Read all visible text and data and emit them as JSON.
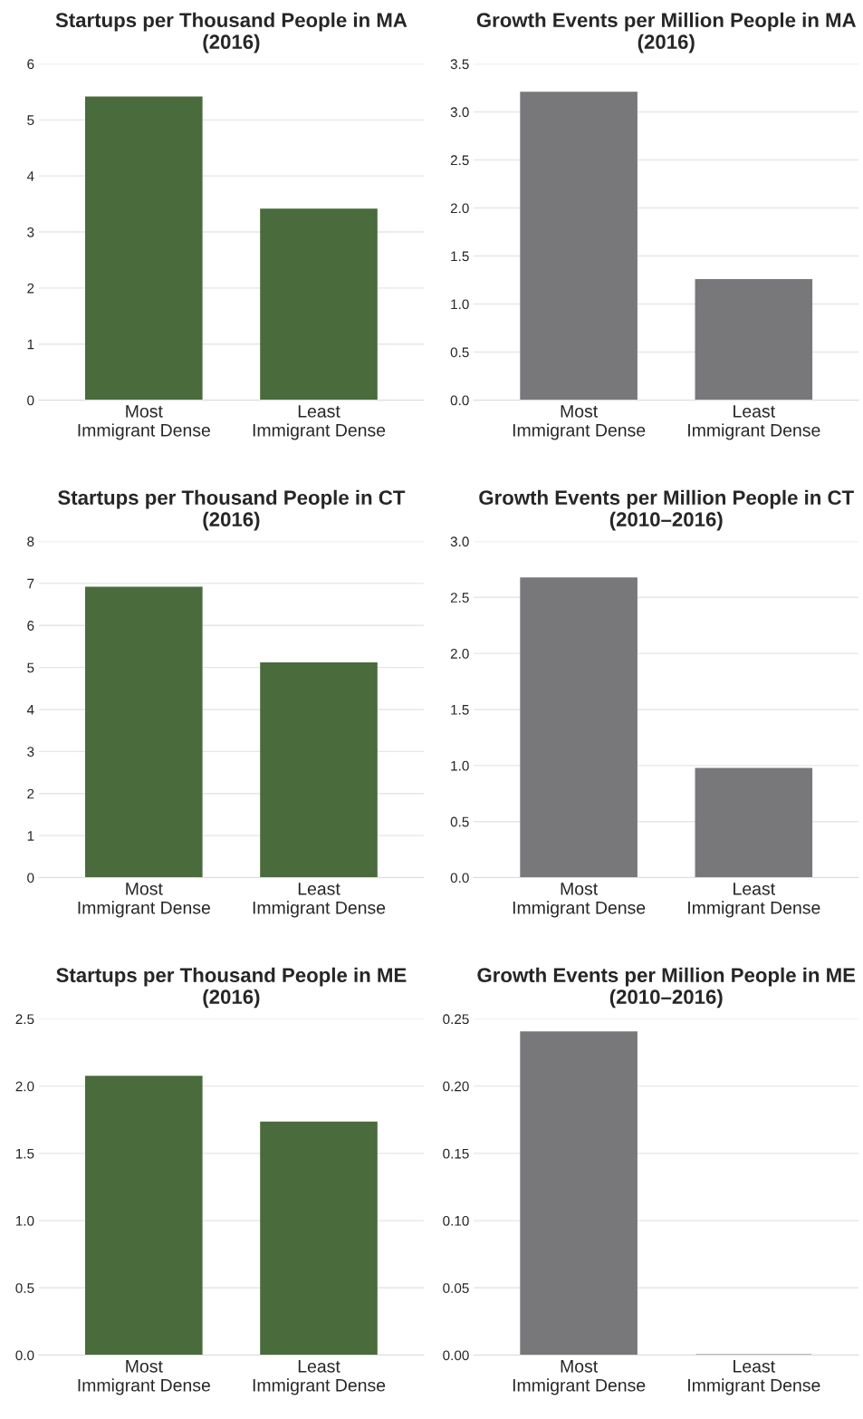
{
  "chart_data": [
    {
      "type": "bar",
      "title": "Startups per Thousand People in MA\n(2016)",
      "categories": [
        "Most\nImmigrant Dense",
        "Least\nImmigrant Dense"
      ],
      "values": [
        5.4,
        3.4
      ],
      "color": "#4a6b3c",
      "ylim": [
        0,
        6
      ],
      "yticks": [
        0,
        1,
        2,
        3,
        4,
        5,
        6
      ],
      "grid": "y"
    },
    {
      "type": "bar",
      "title": "Growth Events per Million People in MA\n(2016)",
      "categories": [
        "Most\nImmigrant Dense",
        "Least\nImmigrant Dense"
      ],
      "values": [
        3.2,
        1.25
      ],
      "color": "#78787a",
      "ylim": [
        0,
        3.5
      ],
      "yticks": [
        {
          "value": 0,
          "label": "0.0"
        },
        0.5,
        {
          "value": 1,
          "label": "1.0"
        },
        1.5,
        {
          "value": 2,
          "label": "2.0"
        },
        2.5,
        {
          "value": 3,
          "label": "3.0"
        },
        3.5
      ],
      "grid": "y"
    },
    {
      "type": "bar",
      "title": "Startups per Thousand People in CT\n(2016)",
      "categories": [
        "Most\nImmigrant Dense",
        "Least\nImmigrant Dense"
      ],
      "values": [
        6.9,
        5.1
      ],
      "color": "#4a6b3c",
      "ylim": [
        0,
        8
      ],
      "yticks": [
        0,
        1,
        2,
        3,
        4,
        5,
        6,
        7,
        8
      ],
      "grid": "y"
    },
    {
      "type": "bar",
      "title": "Growth Events per Million People in CT\n(2010–2016)",
      "categories": [
        "Most\nImmigrant Dense",
        "Least\nImmigrant Dense"
      ],
      "values": [
        2.67,
        0.97
      ],
      "color": "#78787a",
      "ylim": [
        0,
        3.0
      ],
      "yticks": [
        {
          "value": 0,
          "label": "0.0"
        },
        0.5,
        {
          "value": 1,
          "label": "1.0"
        },
        1.5,
        {
          "value": 2,
          "label": "2.0"
        },
        2.5,
        {
          "value": 3,
          "label": "3.0"
        }
      ],
      "grid": "y"
    },
    {
      "type": "bar",
      "title": "Startups per Thousand People in ME\n(2016)",
      "categories": [
        "Most\nImmigrant Dense",
        "Least\nImmigrant Dense"
      ],
      "values": [
        2.07,
        1.73
      ],
      "color": "#4a6b3c",
      "ylim": [
        0,
        2.5
      ],
      "yticks": [
        {
          "value": 0,
          "label": "0.0"
        },
        0.5,
        {
          "value": 1,
          "label": "1.0"
        },
        1.5,
        {
          "value": 2,
          "label": "2.0"
        },
        2.5
      ],
      "grid": "y"
    },
    {
      "type": "bar",
      "title": "Growth Events per Million People in ME\n(2010–2016)",
      "categories": [
        "Most\nImmigrant Dense",
        "Least\nImmigrant Dense"
      ],
      "values": [
        0.24,
        0
      ],
      "color": "#78787a",
      "ylim": [
        0,
        0.25
      ],
      "yticks": [
        {
          "value": 0,
          "label": "0.00"
        },
        {
          "value": 0.05,
          "label": "0.05"
        },
        {
          "value": 0.1,
          "label": "0.10"
        },
        {
          "value": 0.15,
          "label": "0.15"
        },
        {
          "value": 0.2,
          "label": "0.20"
        },
        {
          "value": 0.25,
          "label": "0.25"
        }
      ],
      "grid": "y"
    }
  ]
}
